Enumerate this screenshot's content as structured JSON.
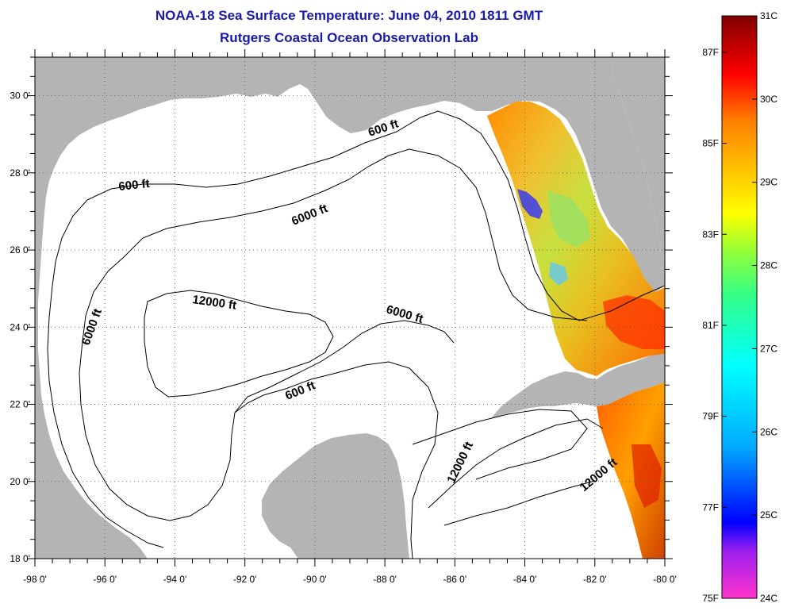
{
  "header": {
    "title": "NOAA-18 Sea Surface Temperature:  June 04, 2010 1811 GMT",
    "subtitle": "Rutgers Coastal Ocean Observation Lab"
  },
  "map": {
    "lon_range": [
      -98,
      -80
    ],
    "lat_range": [
      18,
      31
    ],
    "lon_ticks": [
      "-98 0'",
      "-96 0'",
      "-94 0'",
      "-92 0'",
      "-90 0'",
      "-88 0'",
      "-86 0'",
      "-84 0'",
      "-82 0'",
      "-80 0'"
    ],
    "lat_ticks": [
      "18 0'",
      "20 0'",
      "22 0'",
      "24 0'",
      "26 0'",
      "28 0'",
      "30 0'"
    ],
    "contour_labels": [
      "600 ft",
      "600 ft",
      "600 ft",
      "6000 ft",
      "6000 ft",
      "6000 ft",
      "12000 ft",
      "12000 ft",
      "12000 ft"
    ],
    "land_color": "#b4b4b4",
    "ocean_nodata_color": "#ffffff",
    "grid": "dotted"
  },
  "colorbar": {
    "celsius_labels": [
      "31C",
      "30C",
      "29C",
      "28C",
      "27C",
      "26C",
      "25C",
      "24C"
    ],
    "fahrenheit_labels": [
      "87F",
      "85F",
      "83F",
      "81F",
      "79F",
      "77F",
      "75F"
    ],
    "range_c": [
      24,
      31
    ],
    "range_f": [
      75,
      87.8
    ],
    "colormap": [
      "#ff00ff",
      "#9b30ff",
      "#0000ff",
      "#00bfff",
      "#00ffff",
      "#00ff80",
      "#7fff00",
      "#ffff00",
      "#ffbf00",
      "#ff8000",
      "#ff0000",
      "#b00000",
      "#7a0000"
    ]
  }
}
